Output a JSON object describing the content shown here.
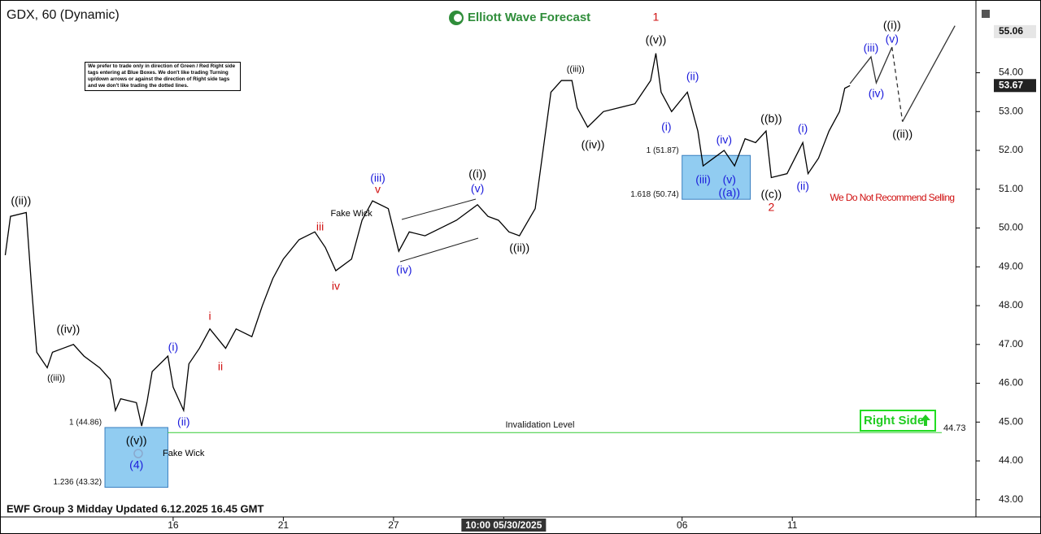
{
  "chart_data": {
    "type": "line",
    "title": "GDX, 60 (Dynamic)",
    "brand": "Elliott Wave Forecast",
    "disclaimer": "We prefer to trade only in direction of Green / Red Right side tags entering at Blue Boxes. We don't like trading Turning up/down arrows or against the direction of Right side tags and we don't like trading the dotted lines.",
    "footer": "EWF Group 3 Midday Updated 6.12.2025 16.45 GMT",
    "right_side": "Right Side",
    "warning": "We Do Not Recommend Selling",
    "xlim": [
      0,
      186
    ],
    "ylim": [
      42.64,
      55.77
    ],
    "xticks": [
      {
        "value": 33,
        "label": "16"
      },
      {
        "value": 54,
        "label": "21"
      },
      {
        "value": 75,
        "label": "27"
      },
      {
        "value": 96,
        "label": "10:00 05/30/2025"
      },
      {
        "value": 130,
        "label": "06"
      },
      {
        "value": 151,
        "label": "11"
      }
    ],
    "yticks": [
      {
        "value": 43,
        "label": "43.00"
      },
      {
        "value": 44,
        "label": "44.00"
      },
      {
        "value": 45,
        "label": "45.00"
      },
      {
        "value": 46,
        "label": "46.00"
      },
      {
        "value": 47,
        "label": "47.00"
      },
      {
        "value": 48,
        "label": "48.00"
      },
      {
        "value": 49,
        "label": "49.00"
      },
      {
        "value": 50,
        "label": "50.00"
      },
      {
        "value": 51,
        "label": "51.00"
      },
      {
        "value": 52,
        "label": "52.00"
      },
      {
        "value": 53,
        "label": "53.00"
      },
      {
        "value": 54,
        "label": "54.00"
      }
    ],
    "price_labels": [
      55.06,
      53.67
    ],
    "series": [
      {
        "color": "#000000",
        "style": "solid",
        "x": [
          1,
          2,
          5,
          6,
          7,
          9,
          10,
          12,
          14,
          16,
          19,
          21,
          22,
          23,
          26,
          27,
          28,
          29,
          32,
          33,
          35,
          36,
          38,
          40,
          43,
          45,
          48,
          50,
          52,
          54,
          57,
          60,
          62,
          64,
          67,
          69,
          71,
          74,
          76,
          78,
          81,
          84,
          87,
          91,
          93,
          95,
          97,
          99,
          102,
          103,
          104,
          105,
          107,
          109,
          110,
          112,
          115,
          118,
          121,
          124,
          125,
          126,
          128,
          131,
          133,
          134,
          136,
          138,
          140,
          142,
          144,
          146,
          147,
          150,
          153,
          154,
          156,
          158,
          160,
          161,
          162
        ],
        "values": [
          49.3,
          50.3,
          50.4,
          48.5,
          46.8,
          46.4,
          46.8,
          46.9,
          47.0,
          46.7,
          46.4,
          46.1,
          45.3,
          45.6,
          45.5,
          44.9,
          45.5,
          46.3,
          46.7,
          45.9,
          45.3,
          46.5,
          46.9,
          47.4,
          46.9,
          47.4,
          47.2,
          48.0,
          48.7,
          49.2,
          49.7,
          49.9,
          49.5,
          48.9,
          49.2,
          50.2,
          50.7,
          50.5,
          49.4,
          49.9,
          49.8,
          50.0,
          50.2,
          50.6,
          50.3,
          50.2,
          49.9,
          49.8,
          50.5,
          51.5,
          52.5,
          53.5,
          53.8,
          53.8,
          53.1,
          52.6,
          53.0,
          53.1,
          53.2,
          53.8,
          54.5,
          53.5,
          53.0,
          53.5,
          52.5,
          51.6,
          51.8,
          52.0,
          51.6,
          52.3,
          52.2,
          52.5,
          51.3,
          51.4,
          52.2,
          51.4,
          51.8,
          52.5,
          53.0,
          53.6,
          53.67
        ]
      },
      {
        "color": "#333333",
        "style": "solid",
        "x": [
          162,
          166,
          167,
          170
        ],
        "values": [
          53.72,
          54.41,
          53.74,
          54.66
        ]
      },
      {
        "color": "#333333",
        "style": "dashed",
        "x": [
          170,
          172
        ],
        "values": [
          54.66,
          52.74
        ]
      },
      {
        "color": "#333333",
        "style": "solid",
        "x": [
          172,
          182
        ],
        "values": [
          52.74,
          55.21
        ]
      }
    ],
    "boxes": [
      {
        "x": [
          20,
          32
        ],
        "y": [
          43.32,
          44.86
        ],
        "label_top": "1 (44.86)",
        "label_bottom": "1.236 (43.32)"
      },
      {
        "x": [
          130,
          143
        ],
        "y": [
          50.74,
          51.87
        ],
        "label_top": "1 (51.87)",
        "label_bottom": "1.618 (50.74)"
      }
    ],
    "invalidation": {
      "value": 44.73,
      "label": "Invalidation Level",
      "color": "#33cc33"
    },
    "annotations": [
      {
        "text": "((ii))",
        "x": 4,
        "y": 50.69,
        "color": "#000000"
      },
      {
        "text": "((iv))",
        "x": 13,
        "y": 47.38,
        "color": "#000000"
      },
      {
        "text": "((iii))",
        "x": 9,
        "y": 46.12,
        "color": "#000000"
      },
      {
        "text": "((v))",
        "x": 26,
        "y": 44.51,
        "color": "#000000"
      },
      {
        "text": "(4)",
        "x": 26,
        "y": 43.88,
        "color": "#1a1adb"
      },
      {
        "text": "Fake Wick",
        "x": 31,
        "y": 44.19,
        "color": "#000000"
      },
      {
        "text": "(i)",
        "x": 33,
        "y": 46.92,
        "color": "#1a1adb"
      },
      {
        "text": "(ii)",
        "x": 35,
        "y": 44.99,
        "color": "#1a1adb"
      },
      {
        "text": "i",
        "x": 40,
        "y": 47.71,
        "color": "#d01010"
      },
      {
        "text": "ii",
        "x": 42,
        "y": 46.41,
        "color": "#d01010"
      },
      {
        "text": "iii",
        "x": 61,
        "y": 50.02,
        "color": "#d01010"
      },
      {
        "text": "Fake Wick",
        "x": 63,
        "y": 50.37,
        "color": "#000000"
      },
      {
        "text": "iv",
        "x": 64,
        "y": 48.49,
        "color": "#d01010"
      },
      {
        "text": "(iii)",
        "x": 72,
        "y": 51.27,
        "color": "#1a1adb"
      },
      {
        "text": "v",
        "x": 72,
        "y": 50.98,
        "color": "#d01010"
      },
      {
        "text": "(iv)",
        "x": 77,
        "y": 48.91,
        "color": "#1a1adb"
      },
      {
        "text": "((i))",
        "x": 91,
        "y": 51.38,
        "color": "#000000"
      },
      {
        "text": "(v)",
        "x": 91,
        "y": 51.0,
        "color": "#1a1adb"
      },
      {
        "text": "((ii))",
        "x": 99,
        "y": 49.47,
        "color": "#000000"
      },
      {
        "text": "((iii))",
        "x": 108,
        "y": 54.08,
        "color": "#000000"
      },
      {
        "text": "((iv))",
        "x": 113,
        "y": 52.13,
        "color": "#000000"
      },
      {
        "text": "1",
        "x": 125,
        "y": 55.42,
        "color": "#d01010"
      },
      {
        "text": "((v))",
        "x": 125,
        "y": 54.83,
        "color": "#000000"
      },
      {
        "text": "(i)",
        "x": 127,
        "y": 52.59,
        "color": "#1a1adb"
      },
      {
        "text": "(ii)",
        "x": 132,
        "y": 53.89,
        "color": "#1a1adb"
      },
      {
        "text": "(iv)",
        "x": 138,
        "y": 52.26,
        "color": "#1a1adb"
      },
      {
        "text": "(iii)",
        "x": 134,
        "y": 51.23,
        "color": "#1a1adb"
      },
      {
        "text": "(v)",
        "x": 139,
        "y": 51.23,
        "color": "#1a1adb"
      },
      {
        "text": "((a))",
        "x": 139,
        "y": 50.9,
        "color": "#1a1adb"
      },
      {
        "text": "((b))",
        "x": 147,
        "y": 52.8,
        "color": "#000000"
      },
      {
        "text": "((c))",
        "x": 147,
        "y": 50.85,
        "color": "#000000"
      },
      {
        "text": "2",
        "x": 147,
        "y": 50.52,
        "color": "#d01010"
      },
      {
        "text": "(i)",
        "x": 153,
        "y": 52.55,
        "color": "#1a1adb"
      },
      {
        "text": "(ii)",
        "x": 153,
        "y": 51.06,
        "color": "#1a1adb"
      },
      {
        "text": "(iii)",
        "x": 166,
        "y": 54.62,
        "color": "#1a1adb"
      },
      {
        "text": "(iv)",
        "x": 167,
        "y": 53.45,
        "color": "#1a1adb"
      },
      {
        "text": "((i))",
        "x": 170,
        "y": 55.21,
        "color": "#000000"
      },
      {
        "text": "(v)",
        "x": 170,
        "y": 54.85,
        "color": "#1a1adb"
      },
      {
        "text": "((ii))",
        "x": 172,
        "y": 52.4,
        "color": "#000000"
      }
    ]
  }
}
